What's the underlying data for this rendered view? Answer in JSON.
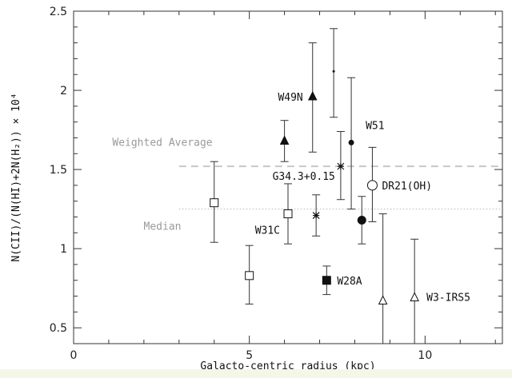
{
  "chart_data": {
    "type": "scatter",
    "title": "",
    "xlabel": "Galacto-centric radius (kpc)",
    "ylabel": "N(CII)/(N(HI)+2N(H₂)) × 10⁴",
    "xlim": [
      0,
      12.2
    ],
    "ylim": [
      0.4,
      2.5
    ],
    "x_ticks": [
      0,
      5,
      10
    ],
    "y_ticks": [
      0.5,
      1,
      1.5,
      2,
      2.5
    ],
    "grid": false,
    "reference_lines": [
      {
        "name": "Weighted Average",
        "y": 1.52,
        "x_start": 3.0,
        "style": "dashed"
      },
      {
        "name": "Median",
        "y": 1.25,
        "x_start": 3.0,
        "style": "dotted"
      }
    ],
    "points": [
      {
        "label": "",
        "x": 4.0,
        "y": 1.29,
        "err_low": 1.04,
        "err_high": 1.55,
        "marker": "square-open"
      },
      {
        "label": "",
        "x": 5.0,
        "y": 0.83,
        "err_low": 0.65,
        "err_high": 1.02,
        "marker": "square-open"
      },
      {
        "label": "W31C",
        "x": 6.1,
        "y": 1.22,
        "err_low": 1.03,
        "err_high": 1.41,
        "marker": "square-open"
      },
      {
        "label": "",
        "x": 6.0,
        "y": 1.68,
        "err_low": 1.55,
        "err_high": 1.81,
        "marker": "triangle-filled"
      },
      {
        "label": "W49N",
        "x": 6.8,
        "y": 1.96,
        "err_low": 1.61,
        "err_high": 2.3,
        "marker": "triangle-filled"
      },
      {
        "label": "",
        "x": 6.9,
        "y": 1.21,
        "err_low": 1.08,
        "err_high": 1.34,
        "marker": "star"
      },
      {
        "label": "W28A",
        "x": 7.2,
        "y": 0.8,
        "err_low": 0.71,
        "err_high": 0.89,
        "marker": "square-filled"
      },
      {
        "label": "",
        "x": 7.4,
        "y": 2.12,
        "err_low": 1.83,
        "err_high": 2.39,
        "marker": "dot"
      },
      {
        "label": "G34.3+0.15",
        "x": 7.6,
        "y": 1.52,
        "err_low": 1.31,
        "err_high": 1.74,
        "marker": "star"
      },
      {
        "label": "W51",
        "x": 7.9,
        "y": 1.67,
        "err_low": 1.25,
        "err_high": 2.08,
        "marker": "circle-filled"
      },
      {
        "label": "",
        "x": 8.2,
        "y": 1.18,
        "err_low": 1.03,
        "err_high": 1.33,
        "marker": "circle-filled"
      },
      {
        "label": "DR21(OH)",
        "x": 8.5,
        "y": 1.4,
        "err_low": 1.17,
        "err_high": 1.64,
        "marker": "circle-open"
      },
      {
        "label": "",
        "x": 8.8,
        "y": 0.67,
        "err_low": 0.4,
        "err_high": 1.22,
        "marker": "triangle-open"
      },
      {
        "label": "W3-IRS5",
        "x": 9.7,
        "y": 0.69,
        "err_low": 0.4,
        "err_high": 1.06,
        "marker": "triangle-open"
      }
    ]
  }
}
